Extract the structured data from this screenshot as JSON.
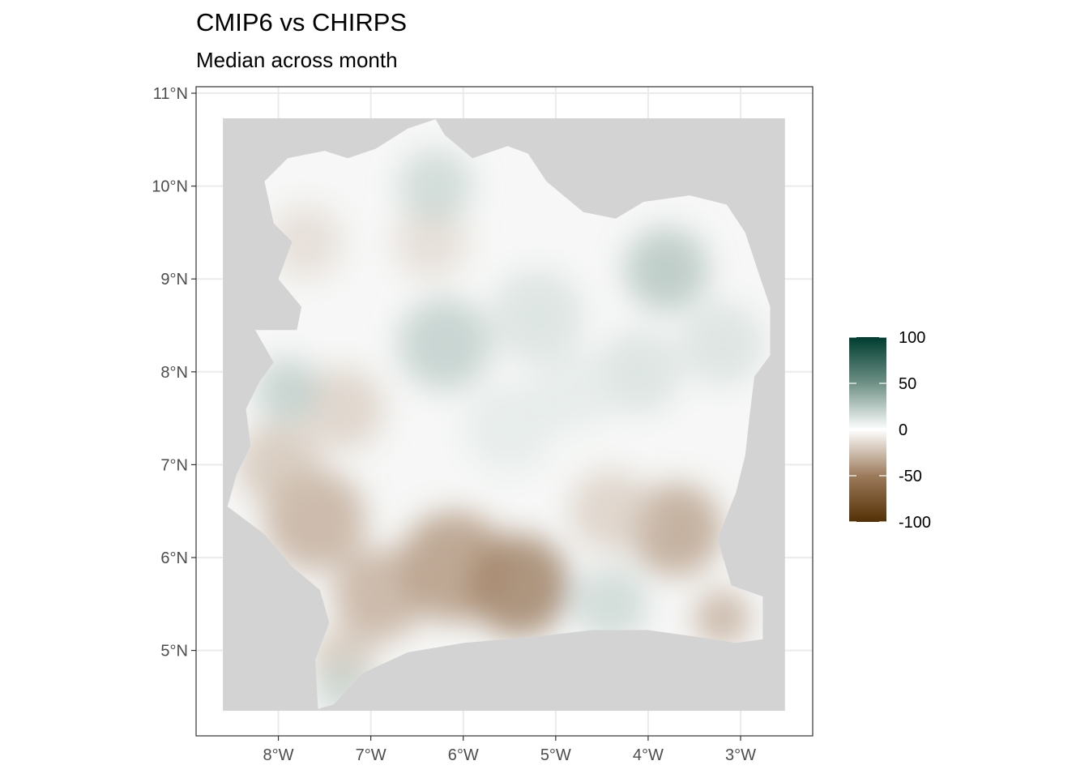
{
  "chart_data": {
    "type": "heatmap",
    "title": "CMIP6 vs CHIRPS",
    "subtitle": "Median across month",
    "x_ticks": [
      {
        "value": -8,
        "label": "8°W"
      },
      {
        "value": -7,
        "label": "7°W"
      },
      {
        "value": -6,
        "label": "6°W"
      },
      {
        "value": -5,
        "label": "5°W"
      },
      {
        "value": -4,
        "label": "4°W"
      },
      {
        "value": -3,
        "label": "3°W"
      }
    ],
    "y_ticks": [
      {
        "value": 5,
        "label": "5°N"
      },
      {
        "value": 6,
        "label": "6°N"
      },
      {
        "value": 7,
        "label": "7°N"
      },
      {
        "value": 8,
        "label": "8°N"
      },
      {
        "value": 9,
        "label": "9°N"
      },
      {
        "value": 10,
        "label": "10°N"
      },
      {
        "value": 11,
        "label": "11°N"
      }
    ],
    "xlim": [
      -8.89,
      -2.22
    ],
    "ylim": [
      4.08,
      11.07
    ],
    "raster_extent": {
      "lon": [
        -8.6,
        -2.52
      ],
      "lat": [
        4.35,
        10.73
      ]
    },
    "na_color": "#d3d3d3",
    "grid": true,
    "colorbar": {
      "position": "right",
      "limits": [
        -100,
        100
      ],
      "breaks": [
        {
          "value": 100,
          "label": "100"
        },
        {
          "value": 50,
          "label": "50"
        },
        {
          "value": 0,
          "label": "0"
        },
        {
          "value": -50,
          "label": "-50"
        },
        {
          "value": -100,
          "label": "-100"
        }
      ],
      "colors": [
        "#543005",
        "#9c7b5c",
        "#ffffff",
        "#6f9186",
        "#003c30"
      ]
    },
    "region_outline": [
      [
        -7.57,
        4.37
      ],
      [
        -7.4,
        4.42
      ],
      [
        -7.1,
        4.75
      ],
      [
        -6.6,
        4.98
      ],
      [
        -6.0,
        5.08
      ],
      [
        -5.2,
        5.15
      ],
      [
        -4.6,
        5.22
      ],
      [
        -4.0,
        5.22
      ],
      [
        -3.3,
        5.12
      ],
      [
        -3.05,
        5.08
      ],
      [
        -2.76,
        5.12
      ],
      [
        -2.76,
        5.58
      ],
      [
        -3.1,
        5.7
      ],
      [
        -3.25,
        6.2
      ],
      [
        -3.05,
        6.7
      ],
      [
        -2.95,
        7.1
      ],
      [
        -2.9,
        7.55
      ],
      [
        -2.85,
        7.95
      ],
      [
        -2.68,
        8.18
      ],
      [
        -2.68,
        8.7
      ],
      [
        -2.8,
        9.05
      ],
      [
        -2.95,
        9.5
      ],
      [
        -3.15,
        9.8
      ],
      [
        -3.55,
        9.9
      ],
      [
        -4.05,
        9.83
      ],
      [
        -4.35,
        9.65
      ],
      [
        -4.7,
        9.72
      ],
      [
        -5.1,
        10.05
      ],
      [
        -5.3,
        10.35
      ],
      [
        -5.52,
        10.43
      ],
      [
        -5.9,
        10.3
      ],
      [
        -6.2,
        10.55
      ],
      [
        -6.3,
        10.72
      ],
      [
        -6.6,
        10.62
      ],
      [
        -6.95,
        10.4
      ],
      [
        -7.25,
        10.3
      ],
      [
        -7.5,
        10.38
      ],
      [
        -7.9,
        10.3
      ],
      [
        -8.15,
        10.05
      ],
      [
        -8.05,
        9.6
      ],
      [
        -7.85,
        9.4
      ],
      [
        -8.0,
        9.0
      ],
      [
        -7.75,
        8.7
      ],
      [
        -7.8,
        8.45
      ],
      [
        -8.25,
        8.45
      ],
      [
        -8.05,
        8.1
      ],
      [
        -8.2,
        7.9
      ],
      [
        -8.35,
        7.6
      ],
      [
        -8.3,
        7.2
      ],
      [
        -8.45,
        6.9
      ],
      [
        -8.55,
        6.55
      ],
      [
        -8.15,
        6.25
      ],
      [
        -7.85,
        5.9
      ],
      [
        -7.55,
        5.65
      ],
      [
        -7.45,
        5.3
      ],
      [
        -7.6,
        4.9
      ]
    ],
    "anomaly_blobs": [
      {
        "lon": -5.4,
        "lat": 5.7,
        "value": -60,
        "r": 0.55
      },
      {
        "lon": -6.1,
        "lat": 5.9,
        "value": -45,
        "r": 0.6
      },
      {
        "lon": -6.9,
        "lat": 5.6,
        "value": -35,
        "r": 0.5
      },
      {
        "lon": -3.7,
        "lat": 6.3,
        "value": -40,
        "r": 0.5
      },
      {
        "lon": -4.4,
        "lat": 6.5,
        "value": -20,
        "r": 0.45
      },
      {
        "lon": -7.6,
        "lat": 6.4,
        "value": -35,
        "r": 0.55
      },
      {
        "lon": -8.0,
        "lat": 7.0,
        "value": -25,
        "r": 0.45
      },
      {
        "lon": -7.3,
        "lat": 7.6,
        "value": -20,
        "r": 0.45
      },
      {
        "lon": -3.2,
        "lat": 5.35,
        "value": -35,
        "r": 0.3
      },
      {
        "lon": -7.3,
        "lat": 4.9,
        "value": -25,
        "r": 0.35
      },
      {
        "lon": -6.35,
        "lat": 9.4,
        "value": -15,
        "r": 0.4
      },
      {
        "lon": -7.7,
        "lat": 9.4,
        "value": -15,
        "r": 0.4
      },
      {
        "lon": -6.2,
        "lat": 8.3,
        "value": 25,
        "r": 0.5
      },
      {
        "lon": -5.2,
        "lat": 8.6,
        "value": 15,
        "r": 0.5
      },
      {
        "lon": -3.8,
        "lat": 9.1,
        "value": 30,
        "r": 0.45
      },
      {
        "lon": -3.2,
        "lat": 8.3,
        "value": 15,
        "r": 0.45
      },
      {
        "lon": -4.1,
        "lat": 8.0,
        "value": 15,
        "r": 0.45
      },
      {
        "lon": -7.9,
        "lat": 7.8,
        "value": 25,
        "r": 0.35
      },
      {
        "lon": -6.3,
        "lat": 10.0,
        "value": 20,
        "r": 0.4
      },
      {
        "lon": -4.4,
        "lat": 5.5,
        "value": 20,
        "r": 0.4
      },
      {
        "lon": -7.3,
        "lat": 4.6,
        "value": 20,
        "r": 0.3
      },
      {
        "lon": -5.5,
        "lat": 7.4,
        "value": 10,
        "r": 0.5
      },
      {
        "lon": -4.8,
        "lat": 7.8,
        "value": 10,
        "r": 0.45
      }
    ]
  }
}
